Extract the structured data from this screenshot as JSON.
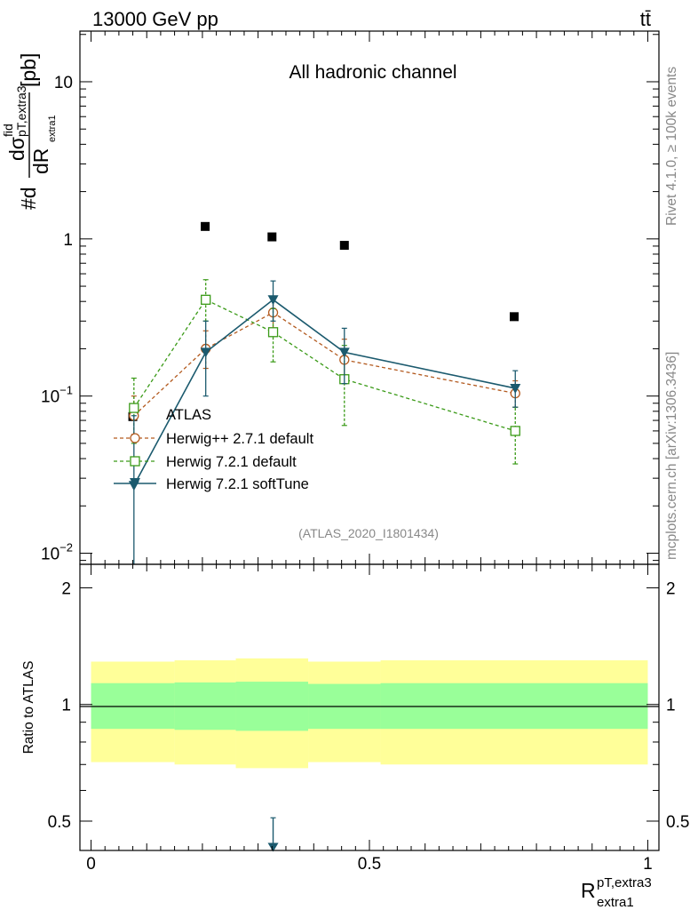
{
  "header": {
    "energy_label": "13000 GeV pp",
    "process_label": "tt̄"
  },
  "side_text": {
    "rivet": "Rivet 4.1.0, ≥ 100k events",
    "mcplots": "mcplots.cern.ch [arXiv:1306.3436]"
  },
  "colors": {
    "data": "#000000",
    "herwigpp": "#b35a1f",
    "herwig721": "#3a9a17",
    "softtune": "#1b5a6e",
    "band_outer": "#ffff99",
    "band_inner": "#99ff99"
  },
  "chart_data": [
    {
      "type": "scatter",
      "title": "All hadronic channel",
      "watermark": "(ATLAS_2020_I1801434)",
      "ylabel_parts": {
        "prefix": "#d",
        "num": "dσ",
        "num_sup": "fid",
        "num_sub": "pT,extra3",
        "den": "dR",
        "den_sub": "extra1",
        "unit": "[pb]"
      },
      "yscale": "log",
      "ylim": [
        0.0085,
        21
      ],
      "xlim": [
        -0.02,
        1.02
      ],
      "ytick_labels": [
        {
          "value": 0.01,
          "base": "10",
          "exp": "−2"
        },
        {
          "value": 0.1,
          "base": "10",
          "exp": "−1"
        },
        {
          "value": 1,
          "base": "1",
          "exp": ""
        },
        {
          "value": 10,
          "base": "10",
          "exp": ""
        }
      ],
      "legend_position": "lower-left",
      "series": [
        {
          "name": "ATLAS",
          "key": "data",
          "marker": "filled-square",
          "points": [
            {
              "x": 0.075,
              "y": 0.074
            },
            {
              "x": 0.205,
              "y": 1.2
            },
            {
              "x": 0.325,
              "y": 1.03
            },
            {
              "x": 0.455,
              "y": 0.91
            },
            {
              "x": 0.76,
              "y": 0.32
            }
          ]
        },
        {
          "name": "Herwig++ 2.7.1 default",
          "key": "herwigpp",
          "marker": "open-circle",
          "line": "dashed",
          "points": [
            {
              "x": 0.077,
              "y": 0.075,
              "lo": 0.057,
              "hi": 0.1
            },
            {
              "x": 0.206,
              "y": 0.2,
              "lo": 0.15,
              "hi": 0.26
            },
            {
              "x": 0.327,
              "y": 0.34,
              "lo": 0.27,
              "hi": 0.42
            },
            {
              "x": 0.455,
              "y": 0.17,
              "lo": 0.12,
              "hi": 0.23
            },
            {
              "x": 0.762,
              "y": 0.104,
              "lo": 0.085,
              "hi": 0.125
            }
          ]
        },
        {
          "name": "Herwig 7.2.1 default",
          "key": "herwig721",
          "marker": "open-square",
          "line": "dashed",
          "points": [
            {
              "x": 0.077,
              "y": 0.084,
              "lo": 0.05,
              "hi": 0.13
            },
            {
              "x": 0.206,
              "y": 0.41,
              "lo": 0.3,
              "hi": 0.55
            },
            {
              "x": 0.327,
              "y": 0.255,
              "lo": 0.165,
              "hi": 0.36
            },
            {
              "x": 0.455,
              "y": 0.128,
              "lo": 0.065,
              "hi": 0.21
            },
            {
              "x": 0.762,
              "y": 0.06,
              "lo": 0.037,
              "hi": 0.085
            }
          ]
        },
        {
          "name": "Herwig 7.2.1 softTune",
          "key": "softtune",
          "marker": "filled-triangle-down",
          "line": "solid",
          "points": [
            {
              "x": 0.077,
              "y": 0.027,
              "lo": 0.0085,
              "hi": 0.075
            },
            {
              "x": 0.206,
              "y": 0.19,
              "lo": 0.1,
              "hi": 0.3
            },
            {
              "x": 0.327,
              "y": 0.41,
              "lo": 0.3,
              "hi": 0.54
            },
            {
              "x": 0.455,
              "y": 0.19,
              "lo": 0.12,
              "hi": 0.27
            },
            {
              "x": 0.762,
              "y": 0.112,
              "lo": 0.085,
              "hi": 0.145
            }
          ]
        }
      ]
    },
    {
      "type": "area",
      "ylabel": "Ratio to ATLAS",
      "xlabel_parts": {
        "base": "R",
        "sup": "pT,extra3",
        "sub": "extra1"
      },
      "yscale": "log",
      "ylim": [
        0.42,
        2.3
      ],
      "xlim": [
        -0.02,
        1.02
      ],
      "ytick_labels": [
        {
          "value": 0.5,
          "label": "0.5"
        },
        {
          "value": 1,
          "label": "1"
        },
        {
          "value": 2,
          "label": "2"
        }
      ],
      "xtick_labels": [
        {
          "value": 0,
          "label": "0"
        },
        {
          "value": 0.5,
          "label": "0.5"
        },
        {
          "value": 1,
          "label": "1"
        }
      ],
      "bins": [
        {
          "x0": 0.0,
          "x1": 0.15,
          "outer": [
            0.71,
            1.29
          ],
          "inner": [
            0.865,
            1.135
          ]
        },
        {
          "x0": 0.15,
          "x1": 0.26,
          "outer": [
            0.7,
            1.3
          ],
          "inner": [
            0.86,
            1.14
          ]
        },
        {
          "x0": 0.26,
          "x1": 0.39,
          "outer": [
            0.685,
            1.315
          ],
          "inner": [
            0.855,
            1.145
          ]
        },
        {
          "x0": 0.39,
          "x1": 0.52,
          "outer": [
            0.71,
            1.29
          ],
          "inner": [
            0.865,
            1.13
          ]
        },
        {
          "x0": 0.52,
          "x1": 1.0,
          "outer": [
            0.7,
            1.3
          ],
          "inner": [
            0.865,
            1.135
          ]
        }
      ],
      "softtune_ratio_arrow": {
        "x": 0.327,
        "from": 0.51,
        "to": 0.43
      }
    }
  ]
}
